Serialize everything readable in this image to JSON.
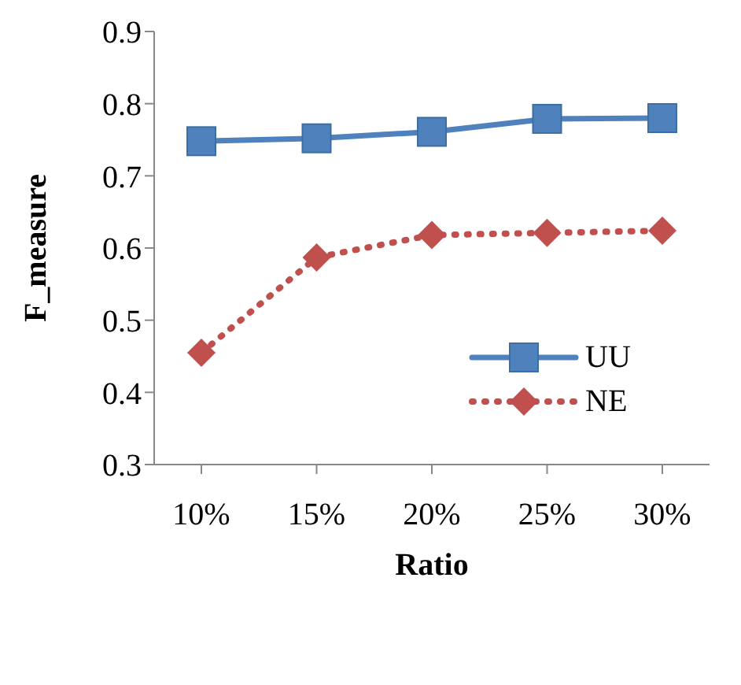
{
  "chart_data": {
    "type": "line",
    "xlabel": "Ratio",
    "ylabel": "F_measure",
    "categories": [
      "10%",
      "15%",
      "20%",
      "25%",
      "30%"
    ],
    "series": [
      {
        "name": "UU",
        "color": "#4f81bd",
        "values": [
          0.748,
          0.752,
          0.761,
          0.779,
          0.78
        ],
        "marker": "square",
        "line_style": "solid"
      },
      {
        "name": "NE",
        "color": "#c0504d",
        "values": [
          0.455,
          0.587,
          0.618,
          0.621,
          0.624
        ],
        "marker": "diamond",
        "line_style": "dotted"
      }
    ],
    "ylim": [
      0.3,
      0.9
    ],
    "yticks": [
      0.3,
      0.4,
      0.5,
      0.6,
      0.7,
      0.8,
      0.9
    ],
    "grid": false,
    "legend": "right"
  }
}
